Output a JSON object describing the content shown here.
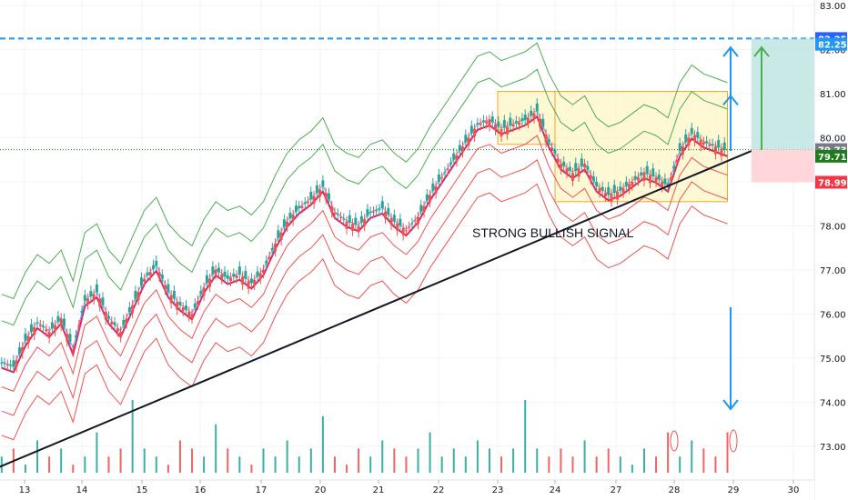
{
  "chart_data": {
    "type": "candlestick",
    "title": "",
    "annotation": "STRONG BULLISH SIGNAL",
    "y_range": [
      72.5,
      83.1
    ],
    "y_ticks": [
      "83.00",
      "82.00",
      "81.00",
      "80.00",
      "79.00",
      "78.00",
      "77.00",
      "76.00",
      "75.00",
      "74.00",
      "73.00"
    ],
    "y_tick_values": [
      83,
      82,
      81,
      80,
      79,
      78,
      77,
      76,
      75,
      74,
      73
    ],
    "x_ticks": [
      "13",
      "14",
      "15",
      "16",
      "17",
      "20",
      "21",
      "22",
      "23",
      "24",
      "27",
      "28",
      "29",
      "30"
    ],
    "price_badges": [
      {
        "label": "82.25",
        "value": 82.25,
        "color": "#2962ff"
      },
      {
        "label": "82.25",
        "value": 82.12,
        "color": "#2196f3"
      },
      {
        "label": "79.73",
        "value": 79.73,
        "color": "#787b86"
      },
      {
        "label": "79.71",
        "value": 79.58,
        "color": "#1e7b1e"
      },
      {
        "label": "78.99",
        "value": 78.99,
        "color": "#f23645"
      }
    ],
    "levels": {
      "target": 82.25,
      "current": 79.73,
      "stop": 78.99
    },
    "boxes": [
      {
        "from_day": 23.0,
        "to_day": 24.0,
        "top": 81.05,
        "bottom": 79.85
      },
      {
        "from_day": 24.0,
        "to_day": 28.9,
        "top": 81.05,
        "bottom": 78.55
      }
    ],
    "trendline": {
      "from": [
        12.5,
        72.5
      ],
      "to": [
        29.3,
        79.7
      ]
    },
    "series": [
      {
        "name": "",
        "values": [
          74.9,
          74.8,
          75.4,
          75.8,
          75.6,
          75.9,
          75.2,
          76.3,
          76.5,
          75.9,
          75.6,
          76.2,
          76.8,
          77.1,
          76.5,
          76.2,
          76.0,
          76.6,
          77.0,
          76.8,
          76.9,
          76.7,
          77.0,
          77.6,
          78.1,
          78.4,
          78.6,
          78.9,
          78.3,
          78.1,
          78.0,
          78.3,
          78.4,
          78.1,
          77.9,
          78.2,
          78.7,
          79.1,
          79.5,
          79.9,
          80.3,
          80.4,
          80.2,
          80.3,
          80.4,
          80.6,
          79.9,
          79.4,
          79.2,
          79.4,
          78.9,
          78.7,
          78.8,
          79.0,
          79.2,
          79.1,
          78.9,
          79.7,
          80.1,
          79.9,
          79.8,
          79.7
        ]
      }
    ],
    "candles": {
      "x_start": 12.6,
      "x_end": 28.9,
      "closes": [
        74.9,
        74.8,
        75.4,
        75.8,
        75.6,
        75.9,
        75.2,
        76.3,
        76.5,
        75.9,
        75.6,
        76.2,
        76.8,
        77.1,
        76.5,
        76.2,
        76.0,
        76.6,
        77.0,
        76.8,
        76.9,
        76.7,
        77.0,
        77.6,
        78.1,
        78.4,
        78.6,
        78.9,
        78.3,
        78.1,
        78.0,
        78.3,
        78.4,
        78.1,
        77.9,
        78.2,
        78.7,
        79.1,
        79.5,
        79.9,
        80.3,
        80.4,
        80.2,
        80.3,
        80.4,
        80.6,
        79.9,
        79.4,
        79.2,
        79.4,
        78.9,
        78.7,
        78.8,
        79.0,
        79.2,
        79.1,
        78.9,
        79.7,
        80.1,
        79.9,
        79.8,
        79.7
      ]
    },
    "volume": [
      2,
      3,
      1,
      4,
      2,
      3,
      1,
      2,
      5,
      2,
      3,
      9,
      3,
      2,
      1,
      4,
      3,
      2,
      6,
      3,
      2,
      1,
      3,
      2,
      4,
      2,
      3,
      7,
      2,
      1,
      3,
      2,
      4,
      3,
      2,
      3,
      5,
      2,
      3,
      2,
      4,
      3,
      2,
      3,
      9,
      3,
      2,
      3,
      2,
      4,
      2,
      3,
      2,
      1,
      3,
      2,
      5,
      2,
      4,
      3,
      2,
      5
    ]
  }
}
